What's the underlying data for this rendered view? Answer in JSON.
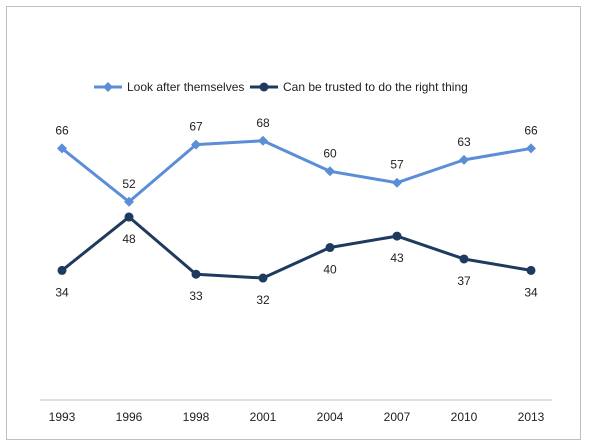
{
  "chart_data": {
    "type": "line",
    "categories": [
      "1993",
      "1996",
      "1998",
      "2001",
      "2004",
      "2007",
      "2010",
      "2013"
    ],
    "series": [
      {
        "name": "Look after themselves",
        "values": [
          66,
          52,
          67,
          68,
          60,
          57,
          63,
          66
        ],
        "color": "#5b8ed6",
        "marker": "diamond",
        "label_position": "above"
      },
      {
        "name": "Can be trusted to do the right thing",
        "values": [
          34,
          48,
          33,
          32,
          40,
          43,
          37,
          34
        ],
        "color": "#1f3a5f",
        "marker": "circle",
        "label_position": "below"
      }
    ],
    "ylim": [
      0,
      85
    ],
    "grid": false,
    "legend": "top-center",
    "data_labels": true
  }
}
